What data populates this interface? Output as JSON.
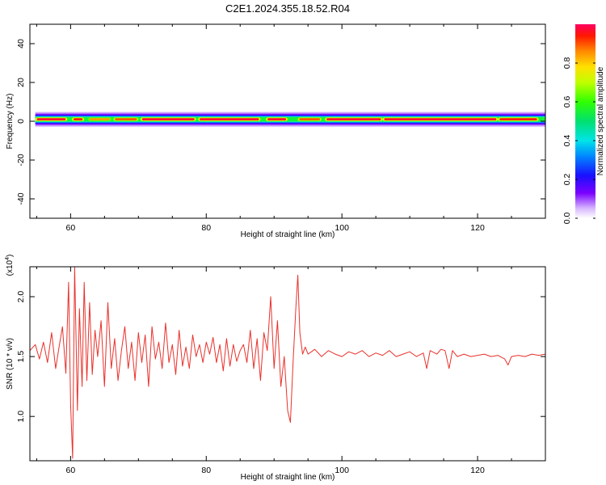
{
  "title": "C2E1.2024.355.18.52.R04",
  "chart_data": [
    {
      "type": "heatmap",
      "xlabel": "Height of straight line (km)",
      "ylabel": "Frequency (Hz)",
      "xlim": [
        54,
        130
      ],
      "ylim": [
        -50,
        50
      ],
      "x_ticks": [
        60,
        80,
        100,
        120
      ],
      "y_ticks": [
        40,
        20,
        0,
        -20,
        -40
      ],
      "x_ticklabels": [
        "60",
        "80",
        "100",
        "120"
      ],
      "y_ticklabels": [
        "40",
        "20",
        "0",
        "-20",
        "-40"
      ],
      "colorbar": {
        "label": "Normalized spectral amplitude",
        "range": [
          0,
          1
        ],
        "ticks": [
          0.0,
          0.2,
          0.4,
          0.6,
          0.8
        ],
        "ticklabels": [
          "0.0",
          "0.2",
          "0.4",
          "0.6",
          "0.8"
        ]
      },
      "band": {
        "center_hz": 1,
        "core_halfwidth_hz": 1.5,
        "segments": [
          {
            "x0": 54.8,
            "x1": 59.5,
            "level": 0.97
          },
          {
            "x0": 60.2,
            "x1": 62.0,
            "level": 0.95
          },
          {
            "x0": 62.6,
            "x1": 66.0,
            "level": 0.85
          },
          {
            "x0": 66.3,
            "x1": 70.0,
            "level": 0.9
          },
          {
            "x0": 70.3,
            "x1": 78.5,
            "level": 0.97
          },
          {
            "x0": 78.8,
            "x1": 88.0,
            "level": 0.97
          },
          {
            "x0": 88.8,
            "x1": 92.0,
            "level": 0.97
          },
          {
            "x0": 93.5,
            "x1": 97.0,
            "level": 0.9
          },
          {
            "x0": 97.5,
            "x1": 106.0,
            "level": 0.97
          },
          {
            "x0": 106.0,
            "x1": 123.0,
            "level": 0.97
          },
          {
            "x0": 123.0,
            "x1": 129.0,
            "level": 0.95
          }
        ]
      }
    },
    {
      "type": "line",
      "xlabel": "Height of straight line (km)",
      "ylabel": "SNR (10 * v/v)",
      "y_multiplier": "(x10",
      "y_multiplier_exp": "4",
      "y_multiplier_close": ")",
      "xlim": [
        54,
        130
      ],
      "ylim": [
        0.63,
        2.25
      ],
      "x_ticks": [
        60,
        80,
        100,
        120
      ],
      "y_ticks": [
        1.0,
        1.5,
        2.0
      ],
      "x_ticklabels": [
        "60",
        "80",
        "100",
        "120"
      ],
      "y_ticklabels": [
        "1.0",
        "1.5",
        "2.0"
      ],
      "series": [
        {
          "color": "#e8312b",
          "x": [
            54.0,
            54.8,
            55.4,
            56.0,
            56.6,
            57.2,
            57.8,
            58.3,
            58.8,
            59.3,
            59.7,
            60.0,
            60.3,
            60.6,
            61.0,
            61.3,
            61.7,
            62.0,
            62.4,
            62.8,
            63.2,
            63.6,
            64.0,
            64.5,
            65.0,
            65.5,
            66.0,
            66.5,
            67.0,
            67.5,
            68.0,
            68.5,
            69.0,
            69.5,
            70.0,
            70.5,
            71.0,
            71.5,
            72.0,
            72.5,
            73.0,
            73.5,
            74.0,
            74.5,
            75.0,
            75.5,
            76.0,
            76.5,
            77.0,
            77.5,
            78.0,
            78.5,
            79.0,
            79.5,
            80.0,
            80.5,
            81.0,
            81.5,
            82.0,
            82.5,
            83.0,
            83.5,
            84.0,
            84.5,
            85.0,
            85.5,
            86.0,
            86.5,
            87.0,
            87.5,
            88.0,
            88.5,
            89.0,
            89.5,
            90.0,
            90.5,
            91.0,
            91.5,
            92.0,
            92.4,
            92.8,
            93.2,
            93.5,
            93.8,
            94.2,
            94.6,
            95.0,
            96.0,
            97.0,
            98.0,
            99.0,
            100.0,
            101.0,
            102.0,
            103.0,
            104.0,
            105.0,
            106.0,
            107.0,
            108.0,
            109.0,
            110.0,
            111.0,
            112.0,
            112.5,
            113.0,
            114.0,
            114.6,
            115.2,
            115.8,
            116.3,
            117.0,
            118.0,
            119.0,
            120.0,
            121.0,
            122.0,
            123.0,
            124.0,
            124.5,
            125.0,
            126.0,
            127.0,
            128.0,
            129.0,
            130.0
          ],
          "y": [
            1.55,
            1.6,
            1.48,
            1.62,
            1.45,
            1.7,
            1.4,
            1.58,
            1.75,
            1.36,
            2.12,
            1.1,
            0.65,
            2.25,
            1.05,
            1.9,
            1.25,
            2.12,
            1.3,
            1.95,
            1.35,
            1.72,
            1.5,
            1.8,
            1.25,
            1.95,
            1.4,
            1.65,
            1.3,
            1.55,
            1.75,
            1.4,
            1.62,
            1.3,
            1.7,
            1.45,
            1.68,
            1.25,
            1.75,
            1.48,
            1.62,
            1.4,
            1.78,
            1.45,
            1.6,
            1.35,
            1.72,
            1.42,
            1.58,
            1.4,
            1.68,
            1.5,
            1.6,
            1.45,
            1.62,
            1.52,
            1.66,
            1.45,
            1.6,
            1.38,
            1.65,
            1.42,
            1.6,
            1.46,
            1.55,
            1.6,
            1.45,
            1.72,
            1.4,
            1.65,
            1.3,
            1.7,
            1.55,
            2.0,
            1.4,
            1.8,
            1.25,
            1.5,
            1.05,
            0.95,
            1.45,
            1.9,
            2.18,
            1.7,
            1.52,
            1.58,
            1.52,
            1.56,
            1.5,
            1.55,
            1.52,
            1.5,
            1.54,
            1.52,
            1.55,
            1.5,
            1.53,
            1.51,
            1.55,
            1.5,
            1.52,
            1.54,
            1.5,
            1.53,
            1.4,
            1.55,
            1.52,
            1.56,
            1.55,
            1.4,
            1.55,
            1.5,
            1.52,
            1.5,
            1.51,
            1.52,
            1.5,
            1.51,
            1.48,
            1.43,
            1.5,
            1.51,
            1.5,
            1.52,
            1.51,
            1.52
          ]
        }
      ]
    }
  ]
}
